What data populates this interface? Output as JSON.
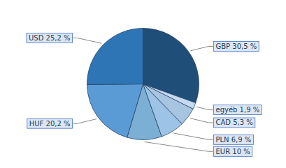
{
  "chart_data": {
    "type": "pie",
    "categories": [
      "GBP 30,5 %",
      "egyéb 1,9 %",
      "CAD 5,3 %",
      "PLN 6,9 %",
      "EUR 10 %",
      "HUF 20,2 %",
      "USD 25,2 %"
    ],
    "values": [
      30.5,
      1.9,
      5.3,
      6.9,
      10.0,
      20.2,
      25.2
    ],
    "colors": [
      "#1f4e79",
      "#c5d9f1",
      "#a7c4e0",
      "#9dc3e6",
      "#7bafd4",
      "#5b9bd5",
      "#2e75b6"
    ]
  }
}
